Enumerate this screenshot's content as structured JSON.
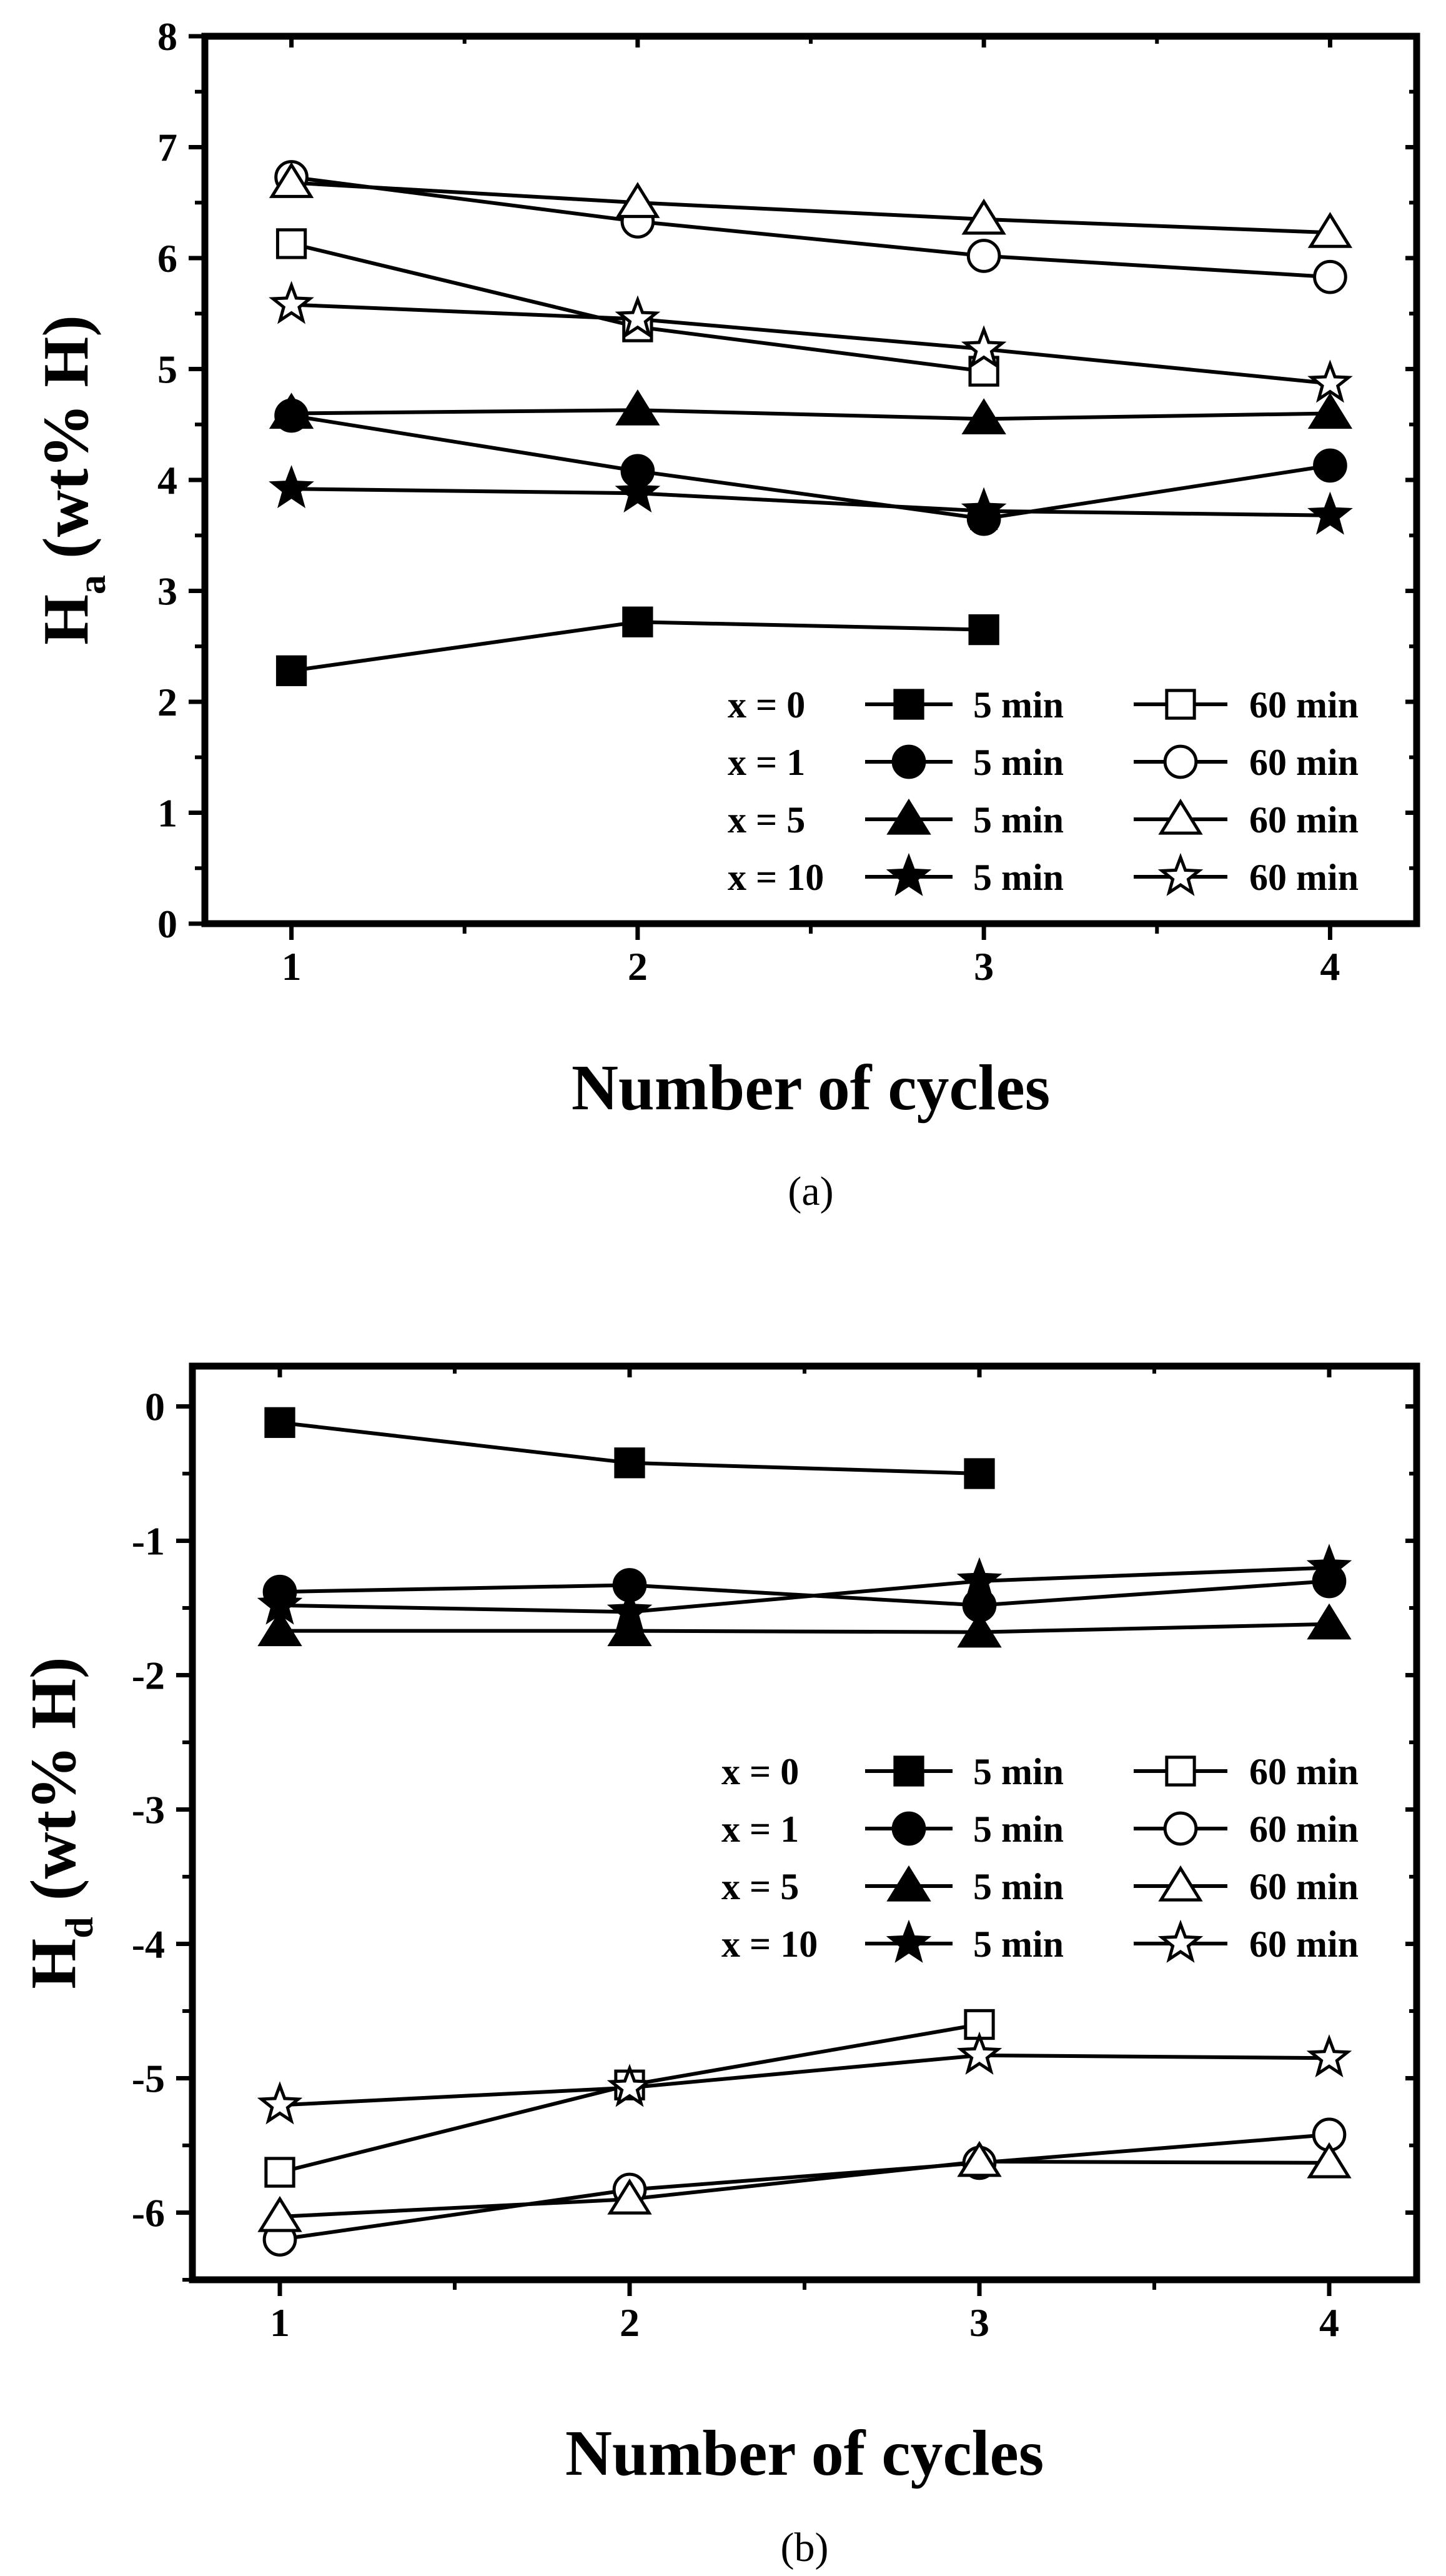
{
  "chart_data": [
    {
      "type": "line",
      "panel": "a",
      "caption": "(a)",
      "xlabel": "Number of cycles",
      "ylabel_main": "H",
      "ylabel_sub": "a",
      "ylabel_rest": " (wt% H)",
      "x_ticks": [
        "1",
        "2",
        "3",
        "4"
      ],
      "y_ticks": [
        "0",
        "1",
        "2",
        "3",
        "4",
        "5",
        "6",
        "7",
        "8"
      ],
      "xlim": [
        0.75,
        4.25
      ],
      "ylim": [
        0,
        8
      ],
      "legend_position": "bottom-right",
      "legend_rows": [
        {
          "label": "x = 0",
          "col5": "5 min",
          "col60": "60 min"
        },
        {
          "label": "x = 1",
          "col5": "5 min",
          "col60": "60 min"
        },
        {
          "label": "x = 5",
          "col5": "5 min",
          "col60": "60 min"
        },
        {
          "label": "x = 10",
          "col5": "5 min",
          "col60": "60 min"
        }
      ],
      "series": [
        {
          "name": "x = 0, 5 min",
          "marker": "square",
          "filled": true,
          "x": [
            1,
            2,
            3
          ],
          "y": [
            2.28,
            2.72,
            2.65
          ]
        },
        {
          "name": "x = 0, 60 min",
          "marker": "square",
          "filled": false,
          "x": [
            1,
            2,
            3
          ],
          "y": [
            6.13,
            5.38,
            4.98
          ]
        },
        {
          "name": "x = 1, 5 min",
          "marker": "circle",
          "filled": true,
          "x": [
            1,
            2,
            3,
            4
          ],
          "y": [
            4.58,
            4.08,
            3.65,
            4.13
          ]
        },
        {
          "name": "x = 1, 60 min",
          "marker": "circle",
          "filled": false,
          "x": [
            1,
            2,
            3,
            4
          ],
          "y": [
            6.73,
            6.33,
            6.02,
            5.83
          ]
        },
        {
          "name": "x = 5, 5 min",
          "marker": "triangle",
          "filled": true,
          "x": [
            1,
            2,
            3,
            4
          ],
          "y": [
            4.6,
            4.63,
            4.55,
            4.6
          ]
        },
        {
          "name": "x = 5, 60 min",
          "marker": "triangle",
          "filled": false,
          "x": [
            1,
            2,
            3,
            4
          ],
          "y": [
            6.68,
            6.5,
            6.35,
            6.23
          ]
        },
        {
          "name": "x = 10, 5 min",
          "marker": "star",
          "filled": true,
          "x": [
            1,
            2,
            3,
            4
          ],
          "y": [
            3.92,
            3.88,
            3.72,
            3.68
          ]
        },
        {
          "name": "x = 10, 60 min",
          "marker": "star",
          "filled": false,
          "x": [
            1,
            2,
            3,
            4
          ],
          "y": [
            5.58,
            5.45,
            5.18,
            4.87
          ]
        }
      ]
    },
    {
      "type": "line",
      "panel": "b",
      "caption": "(b)",
      "xlabel": "Number of cycles",
      "ylabel_main": "H",
      "ylabel_sub": "d",
      "ylabel_rest": " (wt% H)",
      "x_ticks": [
        "1",
        "2",
        "3",
        "4"
      ],
      "y_ticks": [
        "0",
        "-1",
        "-2",
        "-3",
        "-4",
        "-5",
        "-6"
      ],
      "xlim": [
        0.75,
        4.25
      ],
      "ylim": [
        -6.5,
        0.3
      ],
      "legend_position": "middle-right",
      "legend_rows": [
        {
          "label": "x = 0",
          "col5": "5 min",
          "col60": "60 min"
        },
        {
          "label": "x = 1",
          "col5": "5 min",
          "col60": "60 min"
        },
        {
          "label": "x = 5",
          "col5": "5 min",
          "col60": "60 min"
        },
        {
          "label": "x = 10",
          "col5": "5 min",
          "col60": "60 min"
        }
      ],
      "series": [
        {
          "name": "x = 0, 5 min",
          "marker": "square",
          "filled": true,
          "x": [
            1,
            2,
            3
          ],
          "y": [
            -0.12,
            -0.42,
            -0.5
          ]
        },
        {
          "name": "x = 0, 60 min",
          "marker": "square",
          "filled": false,
          "x": [
            1,
            2,
            3
          ],
          "y": [
            -5.7,
            -5.05,
            -4.6
          ]
        },
        {
          "name": "x = 1, 5 min",
          "marker": "circle",
          "filled": true,
          "x": [
            1,
            2,
            3,
            4
          ],
          "y": [
            -1.38,
            -1.33,
            -1.48,
            -1.3
          ]
        },
        {
          "name": "x = 1, 60 min",
          "marker": "circle",
          "filled": false,
          "x": [
            1,
            2,
            3,
            4
          ],
          "y": [
            -6.2,
            -5.83,
            -5.63,
            -5.42
          ]
        },
        {
          "name": "x = 5, 5 min",
          "marker": "triangle",
          "filled": true,
          "x": [
            1,
            2,
            3,
            4
          ],
          "y": [
            -1.67,
            -1.67,
            -1.68,
            -1.62
          ]
        },
        {
          "name": "x = 5, 60 min",
          "marker": "triangle",
          "filled": false,
          "x": [
            1,
            2,
            3,
            4
          ],
          "y": [
            -6.03,
            -5.9,
            -5.62,
            -5.63
          ]
        },
        {
          "name": "x = 10, 5 min",
          "marker": "star",
          "filled": true,
          "x": [
            1,
            2,
            3,
            4
          ],
          "y": [
            -1.48,
            -1.53,
            -1.3,
            -1.2
          ]
        },
        {
          "name": "x = 10, 60 min",
          "marker": "star",
          "filled": false,
          "x": [
            1,
            2,
            3,
            4
          ],
          "y": [
            -5.2,
            -5.07,
            -4.83,
            -4.85
          ]
        }
      ]
    }
  ]
}
